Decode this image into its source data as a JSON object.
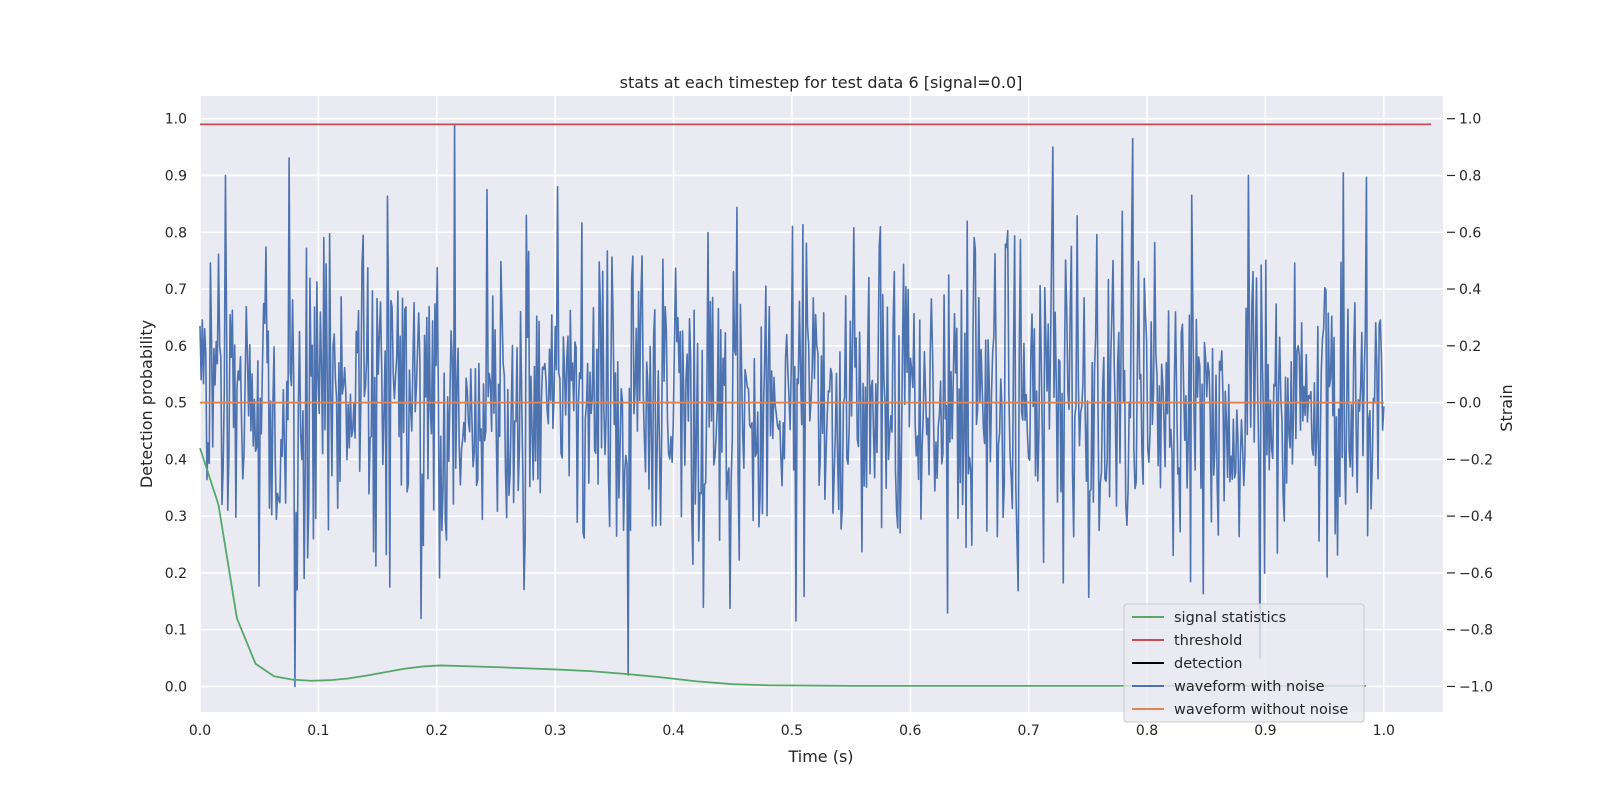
{
  "chart_data": {
    "type": "line",
    "title": "stats at each timestep for test data 6 [signal=0.0]",
    "xlabel": "Time (s)",
    "ylabel": "Detection probability",
    "ylabel_right": "Strain",
    "xlim": [
      0.0,
      1.05
    ],
    "ylim": [
      -0.045,
      1.04
    ],
    "ylim_right": [
      -1.09,
      1.08
    ],
    "xticks": [
      "0.0",
      "0.1",
      "0.2",
      "0.3",
      "0.4",
      "0.5",
      "0.6",
      "0.7",
      "0.8",
      "0.9",
      "1.0"
    ],
    "yticks": [
      "0.0",
      "0.1",
      "0.2",
      "0.3",
      "0.4",
      "0.5",
      "0.6",
      "0.7",
      "0.8",
      "0.9",
      "1.0"
    ],
    "yticks_right": [
      "−1.0",
      "−0.8",
      "−0.6",
      "−0.4",
      "−0.2",
      "0.0",
      "0.2",
      "0.4",
      "0.6",
      "0.8",
      "1.0"
    ],
    "grid": true,
    "legend_position": "lower-right",
    "colors": {
      "background": "#eaeaf2",
      "grid": "#ffffff",
      "signal_statistics": "#55a868",
      "threshold": "#c44e52",
      "detection": "#000000",
      "waveform_with_noise": "#4c72b0",
      "waveform_without_noise": "#dd8452"
    },
    "series": [
      {
        "name": "signal statistics",
        "axis": "left",
        "x": [
          0.0,
          0.0156,
          0.0312,
          0.0469,
          0.0625,
          0.0781,
          0.0938,
          0.1094,
          0.125,
          0.1406,
          0.1562,
          0.1719,
          0.1875,
          0.2031,
          0.2188,
          0.25,
          0.3,
          0.33,
          0.36,
          0.39,
          0.42,
          0.45,
          0.48,
          0.55,
          0.65,
          0.8,
          0.985
        ],
        "values": [
          0.42,
          0.32,
          0.12,
          0.04,
          0.018,
          0.012,
          0.01,
          0.011,
          0.014,
          0.019,
          0.025,
          0.031,
          0.035,
          0.037,
          0.036,
          0.034,
          0.03,
          0.027,
          0.022,
          0.016,
          0.009,
          0.004,
          0.002,
          0.001,
          0.001,
          0.001,
          0.001
        ]
      },
      {
        "name": "threshold",
        "axis": "left",
        "x": [
          0.0,
          1.04
        ],
        "values": [
          0.99,
          0.99
        ]
      },
      {
        "name": "detection",
        "axis": "left",
        "x": [],
        "values": []
      },
      {
        "name": "waveform with noise",
        "axis": "right",
        "description_of_generation": "",
        "x_range": [
          0.0,
          1.0
        ],
        "n_points": 1024,
        "noise_std": 0.27,
        "key_points": [
          [
            0.0,
            0.27
          ],
          [
            0.0215,
            0.8
          ],
          [
            0.08,
            -1.0
          ],
          [
            0.215,
            0.98
          ],
          [
            0.302,
            0.76
          ],
          [
            0.362,
            -0.96
          ],
          [
            0.72,
            0.9
          ],
          [
            0.788,
            0.93
          ],
          [
            0.886,
            0.8
          ],
          [
            0.895,
            -0.9
          ]
        ],
        "values": []
      },
      {
        "name": "waveform without noise",
        "axis": "right",
        "x": [
          0.0,
          1.0
        ],
        "values": [
          0.0,
          0.0
        ]
      }
    ]
  }
}
